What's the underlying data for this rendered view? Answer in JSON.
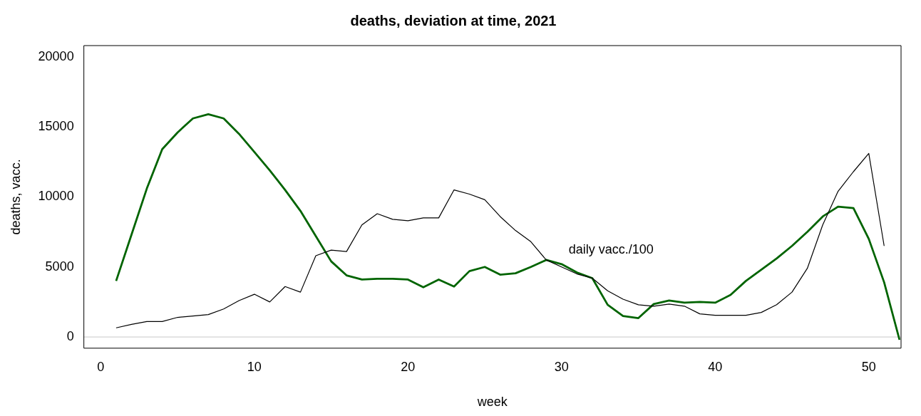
{
  "chart_data": {
    "type": "line",
    "title": "deaths, deviation at time, 2021",
    "xlabel": "week",
    "ylabel": "deaths, vacc.",
    "xlim": [
      -1.1,
      52.1
    ],
    "ylim": [
      -800,
      20800
    ],
    "xticks": [
      0,
      10,
      20,
      30,
      40,
      50
    ],
    "yticks": [
      0,
      5000,
      10000,
      15000,
      20000
    ],
    "grid": false,
    "legend": false,
    "marker": "none",
    "ref_lines": [
      {
        "axis": "y",
        "value": 0,
        "color": "#c8c8c8"
      }
    ],
    "series": [
      {
        "name": "daily vacc./100",
        "color": "#000000",
        "x": [
          1,
          2,
          3,
          4,
          5,
          6,
          7,
          8,
          9,
          10,
          11,
          12,
          13,
          14,
          15,
          16,
          17,
          18,
          19,
          20,
          21,
          22,
          23,
          24,
          25,
          26,
          27,
          28,
          29,
          30,
          31,
          32,
          33,
          34,
          35,
          36,
          37,
          38,
          39,
          40,
          41,
          42,
          43,
          44,
          45,
          46,
          47,
          48,
          49,
          50,
          51
        ],
        "values": [
          650,
          900,
          1100,
          1100,
          1400,
          1500,
          1600,
          2000,
          2600,
          3050,
          2500,
          3600,
          3200,
          5800,
          6200,
          6100,
          8000,
          8800,
          8400,
          8300,
          8500,
          8500,
          10500,
          10200,
          9800,
          8600,
          7600,
          6800,
          5500,
          5000,
          4500,
          4200,
          3300,
          2700,
          2300,
          2200,
          2350,
          2200,
          1650,
          1550,
          1550,
          1550,
          1750,
          2300,
          3200,
          4900,
          8000,
          10400,
          11800,
          13100,
          6500
        ]
      },
      {
        "color": "#006400",
        "x": [
          1,
          2,
          3,
          4,
          5,
          6,
          7,
          8,
          9,
          10,
          11,
          12,
          13,
          14,
          15,
          16,
          17,
          18,
          19,
          20,
          21,
          22,
          23,
          24,
          25,
          26,
          27,
          28,
          29,
          30,
          31,
          32,
          33,
          34,
          35,
          36,
          37,
          38,
          39,
          40,
          41,
          42,
          43,
          44,
          45,
          46,
          47,
          48,
          49,
          50,
          51,
          52
        ],
        "values": [
          4000,
          7300,
          10600,
          13400,
          14600,
          15600,
          15900,
          15600,
          14500,
          13200,
          11900,
          10500,
          9000,
          7200,
          5400,
          4400,
          4100,
          4150,
          4150,
          4100,
          3550,
          4100,
          3600,
          4700,
          5000,
          4450,
          4550,
          5000,
          5500,
          5200,
          4600,
          4200,
          2300,
          1500,
          1350,
          2350,
          2600,
          2450,
          2500,
          2450,
          3000,
          4000,
          4800,
          5600,
          6500,
          7500,
          8600,
          9300,
          9200,
          7000,
          3900,
          -200
        ]
      }
    ]
  }
}
